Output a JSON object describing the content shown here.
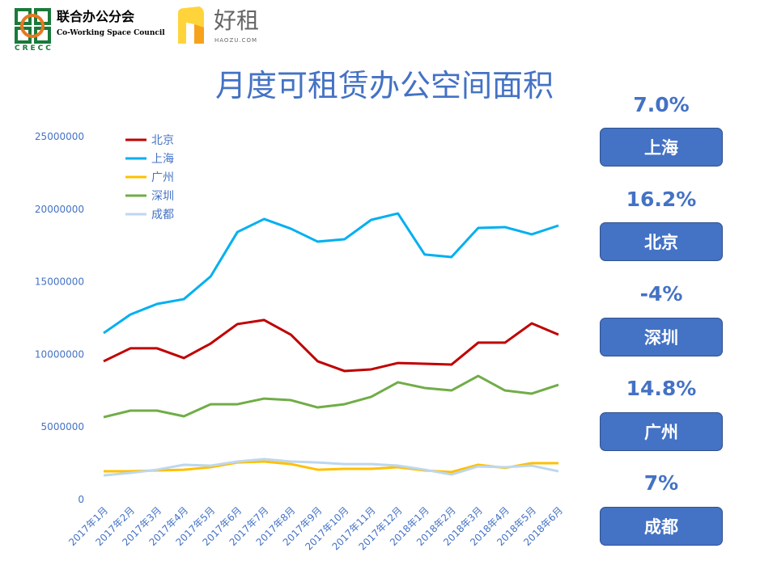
{
  "header": {
    "logo1_cn": "联合办公分会",
    "logo1_en": "Co-Working Space Council",
    "logo1_abbr": "CRECC",
    "logo2_cn": "好租",
    "logo2_en": "HAOZU.COM"
  },
  "chart_data": {
    "type": "line",
    "title": "月度可租赁办公空间面积",
    "categories": [
      "2017年1月",
      "2017年2月",
      "2017年3月",
      "2017年4月",
      "2017年5月",
      "2017年6月",
      "2017年7月",
      "2017年8月",
      "2017年9月",
      "2017年10月",
      "2017年11月",
      "2017年12月",
      "2018年1月",
      "2018年2月",
      "2018年3月",
      "2018年4月",
      "2018年5月",
      "2018年6月"
    ],
    "ylim": [
      0,
      25000000
    ],
    "yticks": [
      "0",
      "5000000",
      "10000000",
      "15000000",
      "20000000",
      "25000000"
    ],
    "grid": false,
    "legend_position": "top-left",
    "series": [
      {
        "name": "北京",
        "color": "#C00000",
        "values": [
          9470000,
          10360000,
          10360000,
          9690000,
          10690000,
          12030000,
          12310000,
          11300000,
          9470000,
          8800000,
          8910000,
          9350000,
          9300000,
          9240000,
          10750000,
          10750000,
          12080000,
          11300000
        ]
      },
      {
        "name": "上海",
        "color": "#00B0F0",
        "values": [
          11410000,
          12690000,
          13420000,
          13750000,
          15310000,
          18370000,
          19270000,
          18600000,
          17710000,
          17870000,
          19210000,
          19650000,
          16820000,
          16650000,
          18650000,
          18710000,
          18210000,
          18820000
        ]
      },
      {
        "name": "广州",
        "color": "#FFC000",
        "values": [
          1890000,
          1890000,
          1950000,
          2000000,
          2170000,
          2500000,
          2560000,
          2390000,
          2000000,
          2060000,
          2060000,
          2170000,
          1950000,
          1840000,
          2340000,
          2120000,
          2450000,
          2450000
        ]
      },
      {
        "name": "深圳",
        "color": "#70AD47",
        "values": [
          5620000,
          6070000,
          6070000,
          5680000,
          6510000,
          6510000,
          6900000,
          6790000,
          6290000,
          6510000,
          7020000,
          8020000,
          7630000,
          7460000,
          8460000,
          7460000,
          7240000,
          7850000
        ]
      },
      {
        "name": "成都",
        "color": "#BDD7EE",
        "values": [
          1610000,
          1780000,
          2000000,
          2340000,
          2280000,
          2560000,
          2730000,
          2560000,
          2500000,
          2390000,
          2390000,
          2280000,
          2000000,
          1670000,
          2230000,
          2170000,
          2280000,
          1890000
        ]
      }
    ]
  },
  "growth": [
    {
      "pct": "7.0%",
      "city": "上海"
    },
    {
      "pct": "16.2%",
      "city": "北京"
    },
    {
      "pct": "-4%",
      "city": "深圳"
    },
    {
      "pct": "14.8%",
      "city": "广州"
    },
    {
      "pct": "7%",
      "city": "成都"
    }
  ],
  "colors": {
    "accent": "#4472C4"
  }
}
